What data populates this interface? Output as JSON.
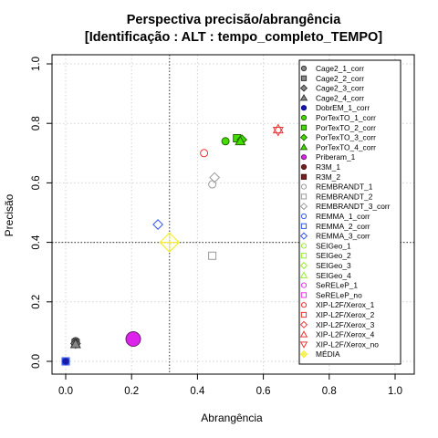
{
  "chart_data": {
    "type": "scatter",
    "title": "Perspectiva precisão/abrangência",
    "subtitle": "[Identificação : ALT : tempo_completo_TEMPO]",
    "xlabel": "Abrangência",
    "ylabel": "Precisão",
    "xlim": [
      0,
      1
    ],
    "ylim": [
      0,
      1
    ],
    "xticks": [
      "0.0",
      "0.2",
      "0.4",
      "0.6",
      "0.8",
      "1.0"
    ],
    "yticks": [
      "0.0",
      "0.2",
      "0.4",
      "0.6",
      "0.8",
      "1.0"
    ],
    "grid": true,
    "legend_position": "top-right",
    "reference_lines": {
      "x": 0.315,
      "y": 0.4
    },
    "series": [
      {
        "name": "Cage2_1_corr",
        "shape": "circle",
        "fill": "#888888",
        "stroke": "#333333",
        "points": [
          [
            0.03,
            0.068
          ]
        ]
      },
      {
        "name": "Cage2_2_corr",
        "shape": "square",
        "fill": "#888888",
        "stroke": "#333333",
        "points": [
          [
            0.03,
            0.062
          ]
        ]
      },
      {
        "name": "Cage2_3_corr",
        "shape": "diamond",
        "fill": "#888888",
        "stroke": "#333333",
        "points": [
          [
            0.03,
            0.06
          ]
        ]
      },
      {
        "name": "Cage2_4_corr",
        "shape": "triangle",
        "fill": "#888888",
        "stroke": "#333333",
        "points": [
          [
            0.03,
            0.058
          ]
        ]
      },
      {
        "name": "DobrEM_1_corr",
        "shape": "circle",
        "fill": "#1a1aaa",
        "stroke": "#00008b",
        "points": [
          [
            0.0,
            0.0
          ]
        ]
      },
      {
        "name": "PorTexTO_1_corr",
        "shape": "circle",
        "fill": "#44dd00",
        "stroke": "#226600",
        "points": [
          [
            0.485,
            0.74
          ]
        ]
      },
      {
        "name": "PorTexTO_2_corr",
        "shape": "square",
        "fill": "#44dd00",
        "stroke": "#226600",
        "points": [
          [
            0.52,
            0.75
          ]
        ]
      },
      {
        "name": "PorTexTO_3_corr",
        "shape": "diamond",
        "fill": "#44dd00",
        "stroke": "#226600",
        "points": [
          [
            0.535,
            0.745
          ]
        ]
      },
      {
        "name": "PorTexTO_4_corr",
        "shape": "triangle",
        "fill": "#44dd00",
        "stroke": "#226600",
        "points": [
          [
            0.53,
            0.74
          ]
        ]
      },
      {
        "name": "Priberam_1",
        "shape": "circle",
        "fill": "#dd22ee",
        "stroke": "#662266",
        "big": true,
        "points": [
          [
            0.205,
            0.075
          ]
        ]
      },
      {
        "name": "R3M_1",
        "shape": "circle",
        "fill": "#7a1f1f",
        "stroke": "#4a0f0f",
        "points": []
      },
      {
        "name": "R3M_2",
        "shape": "square",
        "fill": "#7a1f1f",
        "stroke": "#4a0f0f",
        "points": []
      },
      {
        "name": "REMBRANDT_1",
        "shape": "circle",
        "fill": "none",
        "stroke": "#999999",
        "points": [
          [
            0.445,
            0.595
          ]
        ]
      },
      {
        "name": "REMBRANDT_2",
        "shape": "square",
        "fill": "none",
        "stroke": "#999999",
        "points": [
          [
            0.445,
            0.355
          ]
        ]
      },
      {
        "name": "REMBRANDT_3_corr",
        "shape": "diamond",
        "fill": "none",
        "stroke": "#999999",
        "points": [
          [
            0.452,
            0.618
          ]
        ]
      },
      {
        "name": "REMMA_1_corr",
        "shape": "circle",
        "fill": "none",
        "stroke": "#3355ee",
        "points": [
          [
            0.0,
            0.0
          ]
        ]
      },
      {
        "name": "REMMA_2_corr",
        "shape": "square",
        "fill": "none",
        "stroke": "#3355ee",
        "points": [
          [
            0.0,
            0.0
          ]
        ]
      },
      {
        "name": "REMMA_3_corr",
        "shape": "diamond",
        "fill": "none",
        "stroke": "#3355ee",
        "points": [
          [
            0.28,
            0.46
          ]
        ]
      },
      {
        "name": "SEIGeo_1",
        "shape": "circle",
        "fill": "none",
        "stroke": "#99ee33",
        "points": []
      },
      {
        "name": "SEIGeo_2",
        "shape": "square",
        "fill": "none",
        "stroke": "#99ee33",
        "points": []
      },
      {
        "name": "SEIGeo_3",
        "shape": "diamond",
        "fill": "none",
        "stroke": "#99ee33",
        "points": []
      },
      {
        "name": "SEIGeo_4",
        "shape": "triangle",
        "fill": "none",
        "stroke": "#99ee33",
        "points": []
      },
      {
        "name": "SeRELeP_1",
        "shape": "circle",
        "fill": "none",
        "stroke": "#ee33ee",
        "points": []
      },
      {
        "name": "SeRELeP_no",
        "shape": "square",
        "fill": "none",
        "stroke": "#ee33ee",
        "points": []
      },
      {
        "name": "XIP-L2F/Xerox_1",
        "shape": "circle",
        "fill": "none",
        "stroke": "#ee3333",
        "points": [
          [
            0.42,
            0.7
          ]
        ]
      },
      {
        "name": "XIP-L2F/Xerox_2",
        "shape": "square",
        "fill": "none",
        "stroke": "#ee3333",
        "points": []
      },
      {
        "name": "XIP-L2F/Xerox_3",
        "shape": "diamond",
        "fill": "none",
        "stroke": "#ee3333",
        "points": []
      },
      {
        "name": "XIP-L2F/Xerox_4",
        "shape": "triangle",
        "fill": "none",
        "stroke": "#ee3333",
        "points": [
          [
            0.645,
            0.78
          ]
        ]
      },
      {
        "name": "XIP-L2F/Xerox_no",
        "shape": "triangle-down",
        "fill": "none",
        "stroke": "#ee3333",
        "points": [
          [
            0.645,
            0.775
          ]
        ]
      },
      {
        "name": "MÉDIA",
        "shape": "diamond-cross",
        "fill": "none",
        "stroke": "#f5ee33",
        "big": true,
        "points": [
          [
            0.315,
            0.4
          ]
        ]
      }
    ]
  }
}
